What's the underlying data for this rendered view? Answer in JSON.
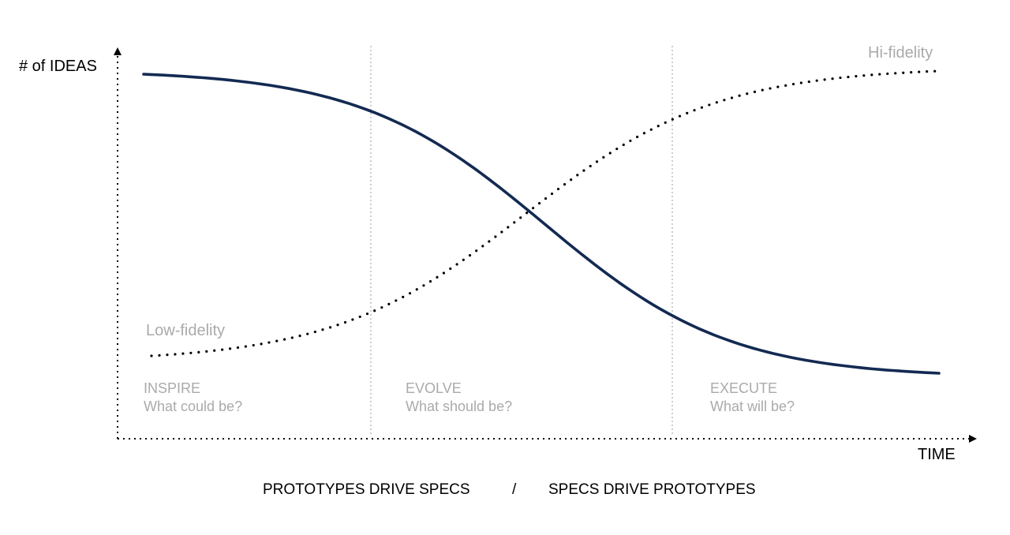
{
  "axes": {
    "y_label": "# of IDEAS",
    "x_label": "TIME"
  },
  "curves": {
    "ideas": {
      "type": "solid"
    },
    "fidelity": {
      "type": "dotted",
      "start_label": "Low-fidelity",
      "end_label": "Hi-fidelity"
    }
  },
  "phases": [
    {
      "name": "INSPIRE",
      "question": "What could be?"
    },
    {
      "name": "EVOLVE",
      "question": "What should be?"
    },
    {
      "name": "EXECUTE",
      "question": "What will be?"
    }
  ],
  "footer": {
    "left": "PROTOTYPES DRIVE SPECS",
    "separator": "/",
    "right": "SPECS DRIVE PROTOTYPES"
  },
  "colors": {
    "curve": "#132a52",
    "label_gray": "#aaaaaa",
    "divider_gray": "#b8b8b8",
    "axis": "#000000",
    "dots": "#000000"
  }
}
